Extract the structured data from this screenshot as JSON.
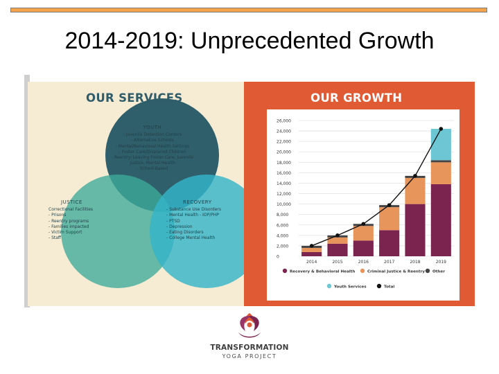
{
  "slide": {
    "title": "2014-2019: Unprecedented Growth"
  },
  "services": {
    "heading": "OUR SERVICES",
    "youth": {
      "title": "YOUTH",
      "items": [
        "- Juvenile Detention Centers",
        "- Alternative Schools",
        "- Mental/Behavioral Health Settings",
        "- Foster Care/Displaced Children",
        "- Reentry: Leaving Foster Care, Juvenile",
        "Justice, Mental Health",
        "- School-Based"
      ]
    },
    "justice": {
      "title": "JUSTICE",
      "items": [
        "Correctional Facilities",
        "- Prisons",
        "- Reentry programs",
        "- Families impacted",
        "- Victim Support",
        "- Staff"
      ]
    },
    "recovery": {
      "title": "RECOVERY",
      "items": [
        "- Substance Use Disorders",
        "- Mental Health - IOP/PHP",
        "- PTSD",
        "- Depression",
        "- Eating Disorders",
        "- College Mental Health"
      ]
    }
  },
  "growth": {
    "heading": "OUR GROWTH"
  },
  "chart_data": {
    "type": "bar",
    "stacked": true,
    "title": "OUR GROWTH",
    "categories": [
      "2014",
      "2015",
      "2016",
      "2017",
      "2018",
      "2019"
    ],
    "ylim": [
      0,
      26000
    ],
    "yticks": [
      "0",
      "2,000",
      "4,000",
      "6,000",
      "8,000",
      "10,000",
      "12,000",
      "14,000",
      "16,000",
      "18,000",
      "20,000",
      "22,000",
      "24,000",
      "26,000"
    ],
    "series": [
      {
        "name": "Recovery & Behavioral Health",
        "color": "#7b2450",
        "values": [
          800,
          2400,
          3000,
          5000,
          10000,
          13800
        ]
      },
      {
        "name": "Criminal Justice & Reentry",
        "color": "#e8955c",
        "values": [
          800,
          1200,
          2800,
          4400,
          5000,
          4200
        ]
      },
      {
        "name": "Other",
        "color": "#444444",
        "values": [
          400,
          400,
          400,
          400,
          400,
          400
        ]
      },
      {
        "name": "Youth Services",
        "color": "#6cc6d4",
        "values": [
          0,
          0,
          0,
          0,
          0,
          6000
        ]
      }
    ],
    "total": {
      "name": "Total",
      "color": "#111111",
      "values": [
        2000,
        4000,
        6200,
        9800,
        15400,
        24400
      ]
    },
    "legend": "bottom"
  },
  "logo": {
    "name": "TRANSFORMATION",
    "sub": "YOGA PROJECT"
  },
  "colors": {
    "accent_orange": "#e05a33",
    "youth_circle": "#2f5f6b",
    "justice_circle": "#3cab9a",
    "recovery_circle": "#35b4c9",
    "cream": "#f6ecd3"
  }
}
